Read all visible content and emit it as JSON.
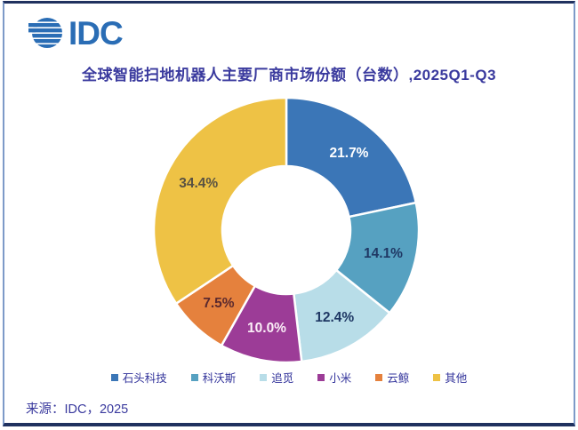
{
  "header": {
    "logo_text": "IDC",
    "logo_color": "#2a6db5"
  },
  "title": {
    "text": "全球智能扫地机器人主要厂商市场份额（台数）,2025Q1-Q3",
    "color": "#3a3a9e"
  },
  "chart_data": {
    "type": "pie",
    "donut": true,
    "title": "全球智能扫地机器人主要厂商市场份额（台数）,2025Q1-Q3",
    "start_angle_deg": 0,
    "direction": "clockwise",
    "legend_position": "bottom",
    "unit": "%",
    "series": [
      {
        "name": "石头科技",
        "value": 21.7,
        "display": "21.7%",
        "color": "#3b76b7",
        "label_color": "#ffffff"
      },
      {
        "name": "科沃斯",
        "value": 14.1,
        "display": "14.1%",
        "color": "#56a1c1",
        "label_color": "#1f3864"
      },
      {
        "name": "追觅",
        "value": 12.4,
        "display": "12.4%",
        "color": "#b8dde8",
        "label_color": "#1f3864"
      },
      {
        "name": "小米",
        "value": 10.0,
        "display": "10.0%",
        "color": "#9c3c97",
        "label_color": "#fbeef7"
      },
      {
        "name": "云鲸",
        "value": 7.5,
        "display": "7.5%",
        "color": "#e5813d",
        "label_color": "#5c2a2e"
      },
      {
        "name": "其他",
        "value": 34.4,
        "display": "34.4%",
        "color": "#eec245",
        "label_color": "#595243"
      }
    ]
  },
  "source": {
    "text": "来源：IDC，2025"
  }
}
